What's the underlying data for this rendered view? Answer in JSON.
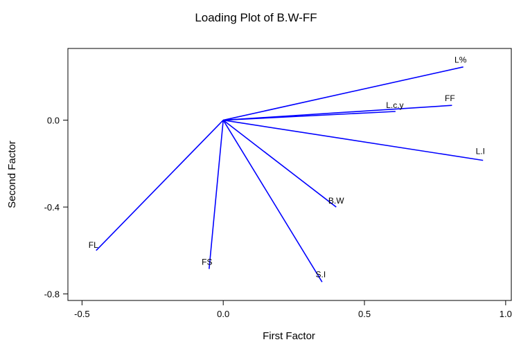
{
  "chart_data": {
    "type": "line",
    "title": "Loading Plot of B.W-FF",
    "xlabel": "First   Factor",
    "ylabel": "Second   Factor",
    "xlim": [
      -0.55,
      1.02
    ],
    "ylim": [
      -0.83,
      0.33
    ],
    "x_ticks": [
      -0.5,
      0.0,
      0.5,
      1.0
    ],
    "x_tick_labels": [
      "-0.5",
      "0.0",
      "0.5",
      "1.0"
    ],
    "y_ticks": [
      0.0,
      -0.4,
      -0.8
    ],
    "y_tick_labels": [
      "0.0",
      "-0.4",
      "-0.8"
    ],
    "grid": false,
    "line_color": "#0000ff",
    "origin": [
      0.0,
      0.0
    ],
    "loadings": [
      {
        "label": "L%",
        "x": 0.85,
        "y": 0.245
      },
      {
        "label": "FF",
        "x": 0.81,
        "y": 0.068
      },
      {
        "label": "L.c.y",
        "x": 0.61,
        "y": 0.04
      },
      {
        "label": "L.I",
        "x": 0.92,
        "y": -0.185
      },
      {
        "label": "B.W",
        "x": 0.4,
        "y": -0.4
      },
      {
        "label": "S.I",
        "x": 0.35,
        "y": -0.745
      },
      {
        "label": "FS",
        "x": -0.05,
        "y": -0.685
      },
      {
        "label": "FL",
        "x": -0.45,
        "y": -0.6
      }
    ]
  }
}
